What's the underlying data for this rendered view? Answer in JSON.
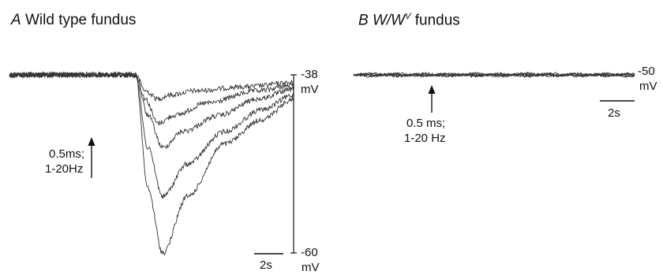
{
  "panel_a": {
    "letter": "A",
    "title": "Wild type fundus",
    "stim_line1": "0.5ms;",
    "stim_line2": "1-20Hz",
    "scale_top": "-38",
    "scale_top_unit": "mV",
    "scale_bottom": "-60",
    "scale_bottom_unit": "mV",
    "time_bar": "2s"
  },
  "panel_b": {
    "letter": "B",
    "title_w1": "W/W",
    "title_sup": "V",
    "title_rest": "fundus",
    "stim_line1": "0.5 ms;",
    "stim_line2": "1-20 Hz",
    "scale_top": "-50",
    "scale_top_unit": "mV",
    "time_bar": "2s"
  },
  "colors": {
    "trace": "#333333",
    "axis": "#111111"
  },
  "chart_data": [
    {
      "type": "line",
      "panel": "A",
      "title": "Wild type fundus",
      "x_unit": "s",
      "y_unit": "mV",
      "ylim": [
        -60,
        -38
      ],
      "annotation": "0.5ms; 1-20Hz",
      "series": [
        {
          "x": [
            0,
            5.1,
            5.5,
            6.0,
            6.5,
            7.5,
            9.5,
            11.5
          ],
          "values": [
            -38,
            -38,
            -40,
            -41,
            -40.5,
            -40,
            -39.5,
            -39
          ]
        },
        {
          "x": [
            0,
            5.1,
            5.5,
            6.0,
            6.7,
            8.0,
            10.0,
            11.5
          ],
          "values": [
            -38,
            -38,
            -41,
            -44,
            -43,
            -41.5,
            -40,
            -39.3
          ]
        },
        {
          "x": [
            0,
            5.1,
            5.6,
            6.2,
            7.0,
            8.5,
            10.0,
            11.5
          ],
          "values": [
            -38,
            -38,
            -43,
            -47,
            -45,
            -43,
            -41,
            -39.8
          ]
        },
        {
          "x": [
            0,
            5.1,
            5.6,
            6.2,
            7.2,
            8.7,
            10.2,
            11.5
          ],
          "values": [
            -38,
            -38,
            -47,
            -53,
            -49,
            -45,
            -42.3,
            -40.5
          ]
        },
        {
          "x": [
            0,
            5.1,
            5.6,
            6.2,
            7.2,
            8.7,
            10.2,
            11.5
          ],
          "values": [
            -38,
            -38,
            -52,
            -60,
            -53,
            -46.5,
            -43.5,
            -41
          ]
        }
      ]
    },
    {
      "type": "line",
      "panel": "B",
      "title": "W/WV fundus",
      "x_unit": "s",
      "y_unit": "mV",
      "annotation": "0.5 ms; 1-20 Hz",
      "series": [
        {
          "x": [
            0,
            11.5
          ],
          "values": [
            -50,
            -50
          ]
        },
        {
          "x": [
            0,
            11.5
          ],
          "values": [
            -50,
            -50
          ]
        },
        {
          "x": [
            0,
            11.5
          ],
          "values": [
            -50,
            -50
          ]
        },
        {
          "x": [
            0,
            11.5
          ],
          "values": [
            -50,
            -50
          ]
        },
        {
          "x": [
            0,
            11.5
          ],
          "values": [
            -50,
            -50
          ]
        }
      ]
    }
  ]
}
